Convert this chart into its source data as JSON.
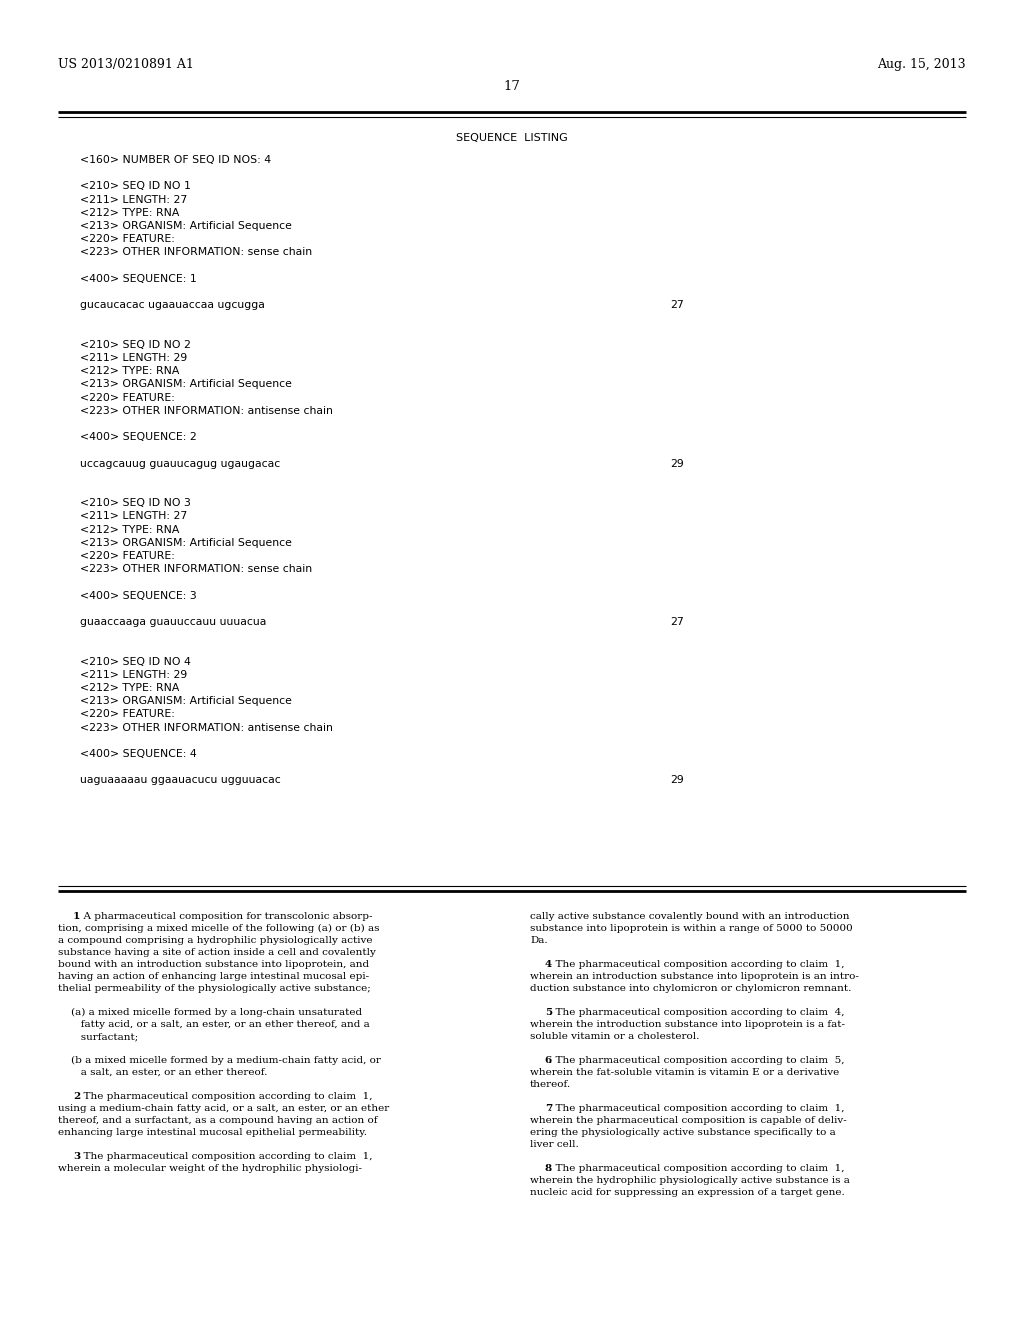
{
  "bg_color": "#ffffff",
  "header_left": "US 2013/0210891 A1",
  "header_right": "Aug. 15, 2013",
  "page_number": "17",
  "seq_title": "SEQUENCE  LISTING",
  "seq_lines": [
    {
      "text": "<160> NUMBER OF SEQ ID NOS: 4",
      "x": 80,
      "num": null
    },
    {
      "text": "",
      "x": 80,
      "num": null
    },
    {
      "text": "<210> SEQ ID NO 1",
      "x": 80,
      "num": null
    },
    {
      "text": "<211> LENGTH: 27",
      "x": 80,
      "num": null
    },
    {
      "text": "<212> TYPE: RNA",
      "x": 80,
      "num": null
    },
    {
      "text": "<213> ORGANISM: Artificial Sequence",
      "x": 80,
      "num": null
    },
    {
      "text": "<220> FEATURE:",
      "x": 80,
      "num": null
    },
    {
      "text": "<223> OTHER INFORMATION: sense chain",
      "x": 80,
      "num": null
    },
    {
      "text": "",
      "x": 80,
      "num": null
    },
    {
      "text": "<400> SEQUENCE: 1",
      "x": 80,
      "num": null
    },
    {
      "text": "",
      "x": 80,
      "num": null
    },
    {
      "text": "gucaucacac ugaauaccaa ugcugga",
      "x": 80,
      "num": "27"
    },
    {
      "text": "",
      "x": 80,
      "num": null
    },
    {
      "text": "",
      "x": 80,
      "num": null
    },
    {
      "text": "<210> SEQ ID NO 2",
      "x": 80,
      "num": null
    },
    {
      "text": "<211> LENGTH: 29",
      "x": 80,
      "num": null
    },
    {
      "text": "<212> TYPE: RNA",
      "x": 80,
      "num": null
    },
    {
      "text": "<213> ORGANISM: Artificial Sequence",
      "x": 80,
      "num": null
    },
    {
      "text": "<220> FEATURE:",
      "x": 80,
      "num": null
    },
    {
      "text": "<223> OTHER INFORMATION: antisense chain",
      "x": 80,
      "num": null
    },
    {
      "text": "",
      "x": 80,
      "num": null
    },
    {
      "text": "<400> SEQUENCE: 2",
      "x": 80,
      "num": null
    },
    {
      "text": "",
      "x": 80,
      "num": null
    },
    {
      "text": "uccagcauug guauucagug ugaugacac",
      "x": 80,
      "num": "29"
    },
    {
      "text": "",
      "x": 80,
      "num": null
    },
    {
      "text": "",
      "x": 80,
      "num": null
    },
    {
      "text": "<210> SEQ ID NO 3",
      "x": 80,
      "num": null
    },
    {
      "text": "<211> LENGTH: 27",
      "x": 80,
      "num": null
    },
    {
      "text": "<212> TYPE: RNA",
      "x": 80,
      "num": null
    },
    {
      "text": "<213> ORGANISM: Artificial Sequence",
      "x": 80,
      "num": null
    },
    {
      "text": "<220> FEATURE:",
      "x": 80,
      "num": null
    },
    {
      "text": "<223> OTHER INFORMATION: sense chain",
      "x": 80,
      "num": null
    },
    {
      "text": "",
      "x": 80,
      "num": null
    },
    {
      "text": "<400> SEQUENCE: 3",
      "x": 80,
      "num": null
    },
    {
      "text": "",
      "x": 80,
      "num": null
    },
    {
      "text": "guaaccaaga guauuccauu uuuacua",
      "x": 80,
      "num": "27"
    },
    {
      "text": "",
      "x": 80,
      "num": null
    },
    {
      "text": "",
      "x": 80,
      "num": null
    },
    {
      "text": "<210> SEQ ID NO 4",
      "x": 80,
      "num": null
    },
    {
      "text": "<211> LENGTH: 29",
      "x": 80,
      "num": null
    },
    {
      "text": "<212> TYPE: RNA",
      "x": 80,
      "num": null
    },
    {
      "text": "<213> ORGANISM: Artificial Sequence",
      "x": 80,
      "num": null
    },
    {
      "text": "<220> FEATURE:",
      "x": 80,
      "num": null
    },
    {
      "text": "<223> OTHER INFORMATION: antisense chain",
      "x": 80,
      "num": null
    },
    {
      "text": "",
      "x": 80,
      "num": null
    },
    {
      "text": "<400> SEQUENCE: 4",
      "x": 80,
      "num": null
    },
    {
      "text": "",
      "x": 80,
      "num": null
    },
    {
      "text": "uaguaaaaau ggaauacucu ugguuacac",
      "x": 80,
      "num": "29"
    }
  ],
  "claims_col1": [
    {
      "t": "    ",
      "b": "1",
      "r": ". A pharmaceutical composition for transcolonic absorp-"
    },
    {
      "t": "tion, comprising a mixed micelle of the following (a) or (b) as",
      "b": "",
      "r": ""
    },
    {
      "t": "a compound comprising a hydrophilic physiologically active",
      "b": "",
      "r": ""
    },
    {
      "t": "substance having a site of action inside a cell and covalently",
      "b": "",
      "r": ""
    },
    {
      "t": "bound with an introduction substance into lipoprotein, and",
      "b": "",
      "r": ""
    },
    {
      "t": "having an action of enhancing large intestinal mucosal epi-",
      "b": "",
      "r": ""
    },
    {
      "t": "thelial permeability of the physiologically active substance;",
      "b": "",
      "r": ""
    },
    {
      "t": "",
      "b": "",
      "r": ""
    },
    {
      "t": "    (a) a mixed micelle formed by a long-chain unsaturated",
      "b": "",
      "r": ""
    },
    {
      "t": "       fatty acid, or a salt, an ester, or an ether thereof, and a",
      "b": "",
      "r": ""
    },
    {
      "t": "       surfactant;",
      "b": "",
      "r": ""
    },
    {
      "t": "",
      "b": "",
      "r": ""
    },
    {
      "t": "    (b a mixed micelle formed by a medium-chain fatty acid, or",
      "b": "",
      "r": ""
    },
    {
      "t": "       a salt, an ester, or an ether thereof.",
      "b": "",
      "r": ""
    },
    {
      "t": "",
      "b": "",
      "r": ""
    },
    {
      "t": "    ",
      "b": "2",
      "r": ". The pharmaceutical composition according to claim  1,"
    },
    {
      "t": "using a medium-chain fatty acid, or a salt, an ester, or an ether",
      "b": "",
      "r": ""
    },
    {
      "t": "thereof, and a surfactant, as a compound having an action of",
      "b": "",
      "r": ""
    },
    {
      "t": "enhancing large intestinal mucosal epithelial permeability.",
      "b": "",
      "r": ""
    },
    {
      "t": "",
      "b": "",
      "r": ""
    },
    {
      "t": "    ",
      "b": "3",
      "r": ". The pharmaceutical composition according to claim  1,"
    },
    {
      "t": "wherein a molecular weight of the hydrophilic physiologi-",
      "b": "",
      "r": ""
    }
  ],
  "claims_col2": [
    {
      "t": "cally active substance covalently bound with an introduction",
      "b": "",
      "r": ""
    },
    {
      "t": "substance into lipoprotein is within a range of 5000 to 50000",
      "b": "",
      "r": ""
    },
    {
      "t": "Da.",
      "b": "",
      "r": ""
    },
    {
      "t": "",
      "b": "",
      "r": ""
    },
    {
      "t": "    ",
      "b": "4",
      "r": ". The pharmaceutical composition according to claim  1,"
    },
    {
      "t": "wherein an introduction substance into lipoprotein is an intro-",
      "b": "",
      "r": ""
    },
    {
      "t": "duction substance into chylomicron or chylomicron remnant.",
      "b": "",
      "r": ""
    },
    {
      "t": "",
      "b": "",
      "r": ""
    },
    {
      "t": "    ",
      "b": "5",
      "r": ". The pharmaceutical composition according to claim  4,"
    },
    {
      "t": "wherein the introduction substance into lipoprotein is a fat-",
      "b": "",
      "r": ""
    },
    {
      "t": "soluble vitamin or a cholesterol.",
      "b": "",
      "r": ""
    },
    {
      "t": "",
      "b": "",
      "r": ""
    },
    {
      "t": "    ",
      "b": "6",
      "r": ". The pharmaceutical composition according to claim  5,"
    },
    {
      "t": "wherein the fat-soluble vitamin is vitamin E or a derivative",
      "b": "",
      "r": ""
    },
    {
      "t": "thereof.",
      "b": "",
      "r": ""
    },
    {
      "t": "",
      "b": "",
      "r": ""
    },
    {
      "t": "    ",
      "b": "7",
      "r": ". The pharmaceutical composition according to claim  1,"
    },
    {
      "t": "wherein the pharmaceutical composition is capable of deliv-",
      "b": "",
      "r": ""
    },
    {
      "t": "ering the physiologically active substance specifically to a",
      "b": "",
      "r": ""
    },
    {
      "t": "liver cell.",
      "b": "",
      "r": ""
    },
    {
      "t": "",
      "b": "",
      "r": ""
    },
    {
      "t": "    ",
      "b": "8",
      "r": ". The pharmaceutical composition according to claim  1,"
    },
    {
      "t": "wherein the hydrophilic physiologically active substance is a",
      "b": "",
      "r": ""
    },
    {
      "t": "nucleic acid for suppressing an expression of a target gene.",
      "b": "",
      "r": ""
    }
  ]
}
